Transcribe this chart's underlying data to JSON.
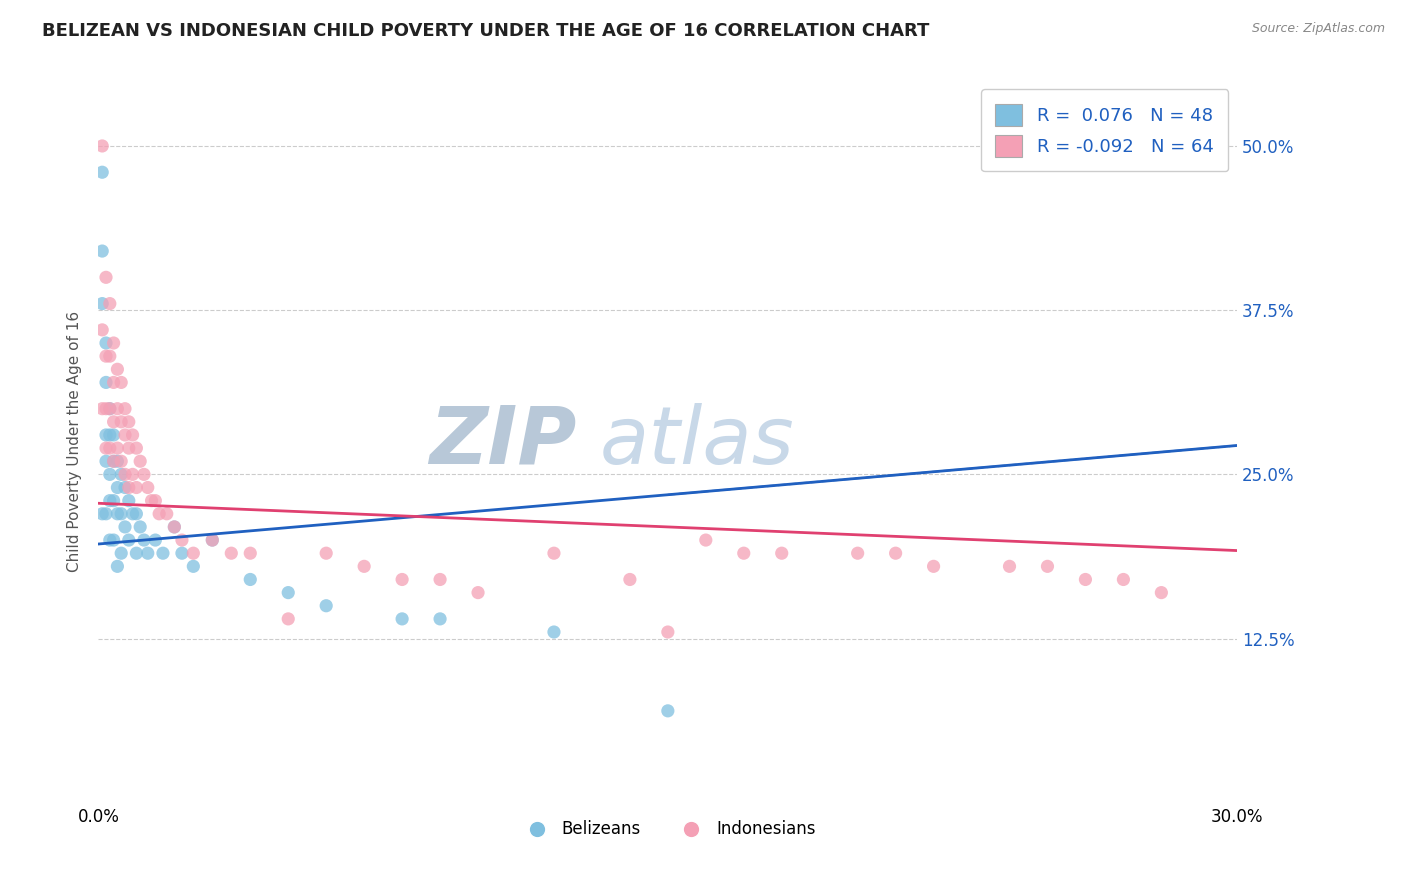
{
  "title": "BELIZEAN VS INDONESIAN CHILD POVERTY UNDER THE AGE OF 16 CORRELATION CHART",
  "source": "Source: ZipAtlas.com",
  "ylabel": "Child Poverty Under the Age of 16",
  "xlabel_belizeans": "Belizeans",
  "xlabel_indonesians": "Indonesians",
  "xmin": 0.0,
  "xmax": 0.3,
  "ymin": 0.0,
  "ymax": 0.55,
  "yticks": [
    0.125,
    0.25,
    0.375,
    0.5
  ],
  "ytick_labels": [
    "12.5%",
    "25.0%",
    "37.5%",
    "50.0%"
  ],
  "xticks": [
    0.0,
    0.3
  ],
  "xtick_labels": [
    "0.0%",
    "30.0%"
  ],
  "r_belizean": 0.076,
  "n_belizean": 48,
  "r_indonesian": -0.092,
  "n_indonesian": 64,
  "blue_color": "#7fbfdf",
  "pink_color": "#f4a0b5",
  "blue_line_color": "#2060c0",
  "pink_line_color": "#e04070",
  "legend_r_color": "#2060c0",
  "watermark_zip_color": "#b8c8d8",
  "watermark_atlas_color": "#c8d8e8",
  "background_color": "#ffffff",
  "grid_color": "#cccccc",
  "title_color": "#222222",
  "bel_line_x0": 0.0,
  "bel_line_y0": 0.197,
  "bel_line_x1": 0.3,
  "bel_line_y1": 0.272,
  "ind_line_x0": 0.0,
  "ind_line_y0": 0.228,
  "ind_line_x1": 0.3,
  "ind_line_y1": 0.192,
  "bel_x": [
    0.001,
    0.001,
    0.001,
    0.001,
    0.002,
    0.002,
    0.002,
    0.002,
    0.002,
    0.003,
    0.003,
    0.003,
    0.003,
    0.003,
    0.004,
    0.004,
    0.004,
    0.004,
    0.005,
    0.005,
    0.005,
    0.005,
    0.006,
    0.006,
    0.006,
    0.007,
    0.007,
    0.008,
    0.008,
    0.009,
    0.01,
    0.01,
    0.011,
    0.012,
    0.013,
    0.015,
    0.017,
    0.02,
    0.022,
    0.025,
    0.03,
    0.04,
    0.05,
    0.06,
    0.08,
    0.09,
    0.12,
    0.15
  ],
  "bel_y": [
    0.48,
    0.42,
    0.38,
    0.22,
    0.35,
    0.32,
    0.28,
    0.26,
    0.22,
    0.3,
    0.28,
    0.25,
    0.23,
    0.2,
    0.28,
    0.26,
    0.23,
    0.2,
    0.26,
    0.24,
    0.22,
    0.18,
    0.25,
    0.22,
    0.19,
    0.24,
    0.21,
    0.23,
    0.2,
    0.22,
    0.22,
    0.19,
    0.21,
    0.2,
    0.19,
    0.2,
    0.19,
    0.21,
    0.19,
    0.18,
    0.2,
    0.17,
    0.16,
    0.15,
    0.14,
    0.14,
    0.13,
    0.07
  ],
  "ind_x": [
    0.001,
    0.001,
    0.001,
    0.002,
    0.002,
    0.002,
    0.002,
    0.003,
    0.003,
    0.003,
    0.003,
    0.004,
    0.004,
    0.004,
    0.004,
    0.005,
    0.005,
    0.005,
    0.006,
    0.006,
    0.006,
    0.007,
    0.007,
    0.007,
    0.008,
    0.008,
    0.008,
    0.009,
    0.009,
    0.01,
    0.01,
    0.011,
    0.012,
    0.013,
    0.014,
    0.015,
    0.016,
    0.018,
    0.02,
    0.022,
    0.025,
    0.03,
    0.035,
    0.04,
    0.05,
    0.06,
    0.07,
    0.08,
    0.09,
    0.1,
    0.12,
    0.14,
    0.15,
    0.16,
    0.17,
    0.18,
    0.2,
    0.21,
    0.22,
    0.24,
    0.25,
    0.26,
    0.27,
    0.28
  ],
  "ind_y": [
    0.5,
    0.36,
    0.3,
    0.4,
    0.34,
    0.3,
    0.27,
    0.38,
    0.34,
    0.3,
    0.27,
    0.35,
    0.32,
    0.29,
    0.26,
    0.33,
    0.3,
    0.27,
    0.32,
    0.29,
    0.26,
    0.3,
    0.28,
    0.25,
    0.29,
    0.27,
    0.24,
    0.28,
    0.25,
    0.27,
    0.24,
    0.26,
    0.25,
    0.24,
    0.23,
    0.23,
    0.22,
    0.22,
    0.21,
    0.2,
    0.19,
    0.2,
    0.19,
    0.19,
    0.14,
    0.19,
    0.18,
    0.17,
    0.17,
    0.16,
    0.19,
    0.17,
    0.13,
    0.2,
    0.19,
    0.19,
    0.19,
    0.19,
    0.18,
    0.18,
    0.18,
    0.17,
    0.17,
    0.16
  ]
}
